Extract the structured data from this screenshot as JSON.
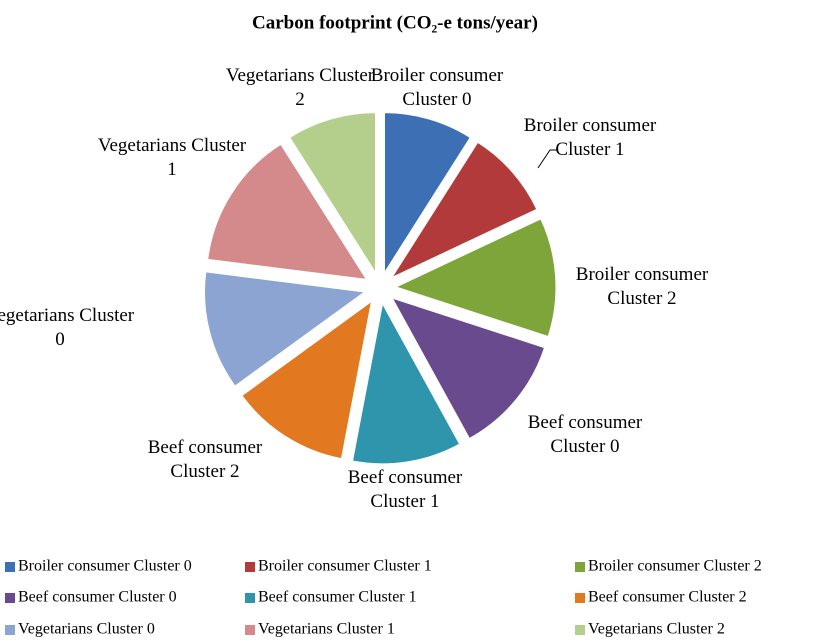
{
  "chart_data": {
    "type": "pie",
    "title": "Carbon footprint (CO₂-e tons/year)",
    "categories": [
      "Broiler consumer Cluster 0",
      "Broiler consumer Cluster 1",
      "Broiler consumer Cluster 2",
      "Beef consumer Cluster 0",
      "Beef consumer Cluster 1",
      "Beef consumer Cluster 2",
      "Vegetarians Cluster 0",
      "Vegetarians Cluster 1",
      "Vegetarians Cluster 2"
    ],
    "values": [
      9,
      9,
      12,
      12,
      11,
      12,
      12,
      14,
      9
    ],
    "colors": [
      "#3d6fb5",
      "#b33a3a",
      "#7ea53a",
      "#6a4a8e",
      "#2f95ac",
      "#e2781f",
      "#8ba4d2",
      "#d48a8a",
      "#b4cf8c"
    ],
    "legend": "bottom"
  }
}
